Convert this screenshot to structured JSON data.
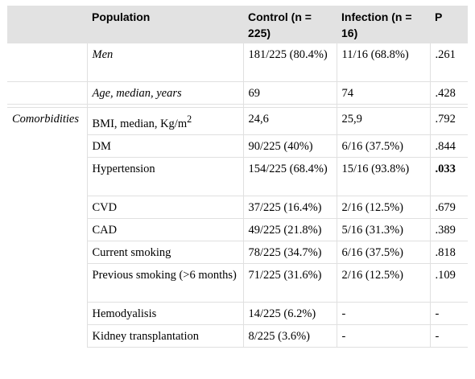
{
  "header": {
    "population": "Population",
    "control": "Control (n = 225)",
    "infection": "Infection (n = 16)",
    "p": "P"
  },
  "rows": [
    {
      "group": "",
      "label": "Men",
      "control": "181/225 (80.4%)",
      "infection": "11/16 (68.8%)",
      "p": ".261"
    },
    {
      "group": "",
      "label": "Age, median, years",
      "control": "69",
      "infection": "74",
      "p": ".428"
    },
    {
      "group": "Comorbidities",
      "label": "BMI, median, Kg/m",
      "label_sup": "2",
      "control": "24,6",
      "infection": "25,9",
      "p": ".792"
    },
    {
      "group": "",
      "label": "DM",
      "control": "90/225 (40%)",
      "infection": "6/16 (37.5%)",
      "p": ".844"
    },
    {
      "group": "",
      "label": "Hypertension",
      "control": "154/225 (68.4%)",
      "infection": "15/16 (93.8%)",
      "p": ".033"
    },
    {
      "group": "",
      "label": "CVD",
      "control": "37/225 (16.4%)",
      "infection": "2/16 (12.5%)",
      "p": ".679"
    },
    {
      "group": "",
      "label": "CAD",
      "control": "49/225 (21.8%)",
      "infection": "5/16 (31.3%)",
      "p": ".389"
    },
    {
      "group": "",
      "label": "Current smoking",
      "control": "78/225 (34.7%)",
      "infection": "6/16 (37.5%)",
      "p": ".818"
    },
    {
      "group": "",
      "label": "Previous smoking (>6 months)",
      "control": "71/225 (31.6%)",
      "infection": "2/16 (12.5%)",
      "p": ".109"
    },
    {
      "group": "",
      "label": "Hemodyalisis",
      "control": "14/225 (6.2%)",
      "infection": "-",
      "p": "-"
    },
    {
      "group": "",
      "label": "Kidney transplantation",
      "control": "8/225 (3.6%)",
      "infection": "-",
      "p": "-"
    }
  ]
}
